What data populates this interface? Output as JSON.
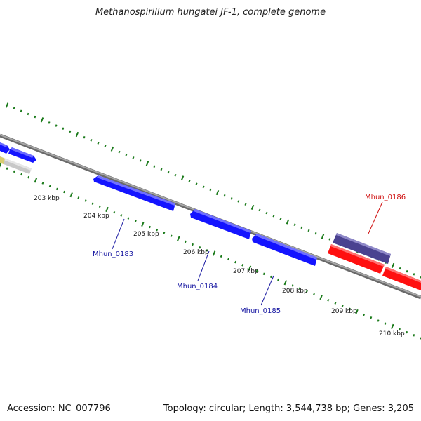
{
  "title": "Methanospirillum hungatei JF-1, complete genome",
  "footer": {
    "accession": "Accession: NC_007796",
    "stats": "Topology: circular; Length: 3,544,738 bp; Genes: 3,205"
  },
  "colors": {
    "forward_gene": "#1414ff",
    "reverse_gene_red": "#ff1010",
    "highlight_gene": "#4a4290",
    "gray_gene": "#c8c8c8",
    "yellow_gene": "#d8cc70",
    "backbone": "#8a8a8a",
    "ticks": "#1a7a1a",
    "blue_label": "#1414a0",
    "red_label": "#d01010"
  },
  "scale": {
    "ticks": [
      {
        "label": "203 kbp"
      },
      {
        "label": "204 kbp"
      },
      {
        "label": "205 kbp"
      },
      {
        "label": "206 kbp"
      },
      {
        "label": "207 kbp"
      },
      {
        "label": "208 kbp"
      },
      {
        "label": "209 kbp"
      },
      {
        "label": "210 kbp"
      }
    ]
  },
  "genes": [
    {
      "name": "Mhun_0183",
      "color": "blue_label"
    },
    {
      "name": "Mhun_0184",
      "color": "blue_label"
    },
    {
      "name": "Mhun_0185",
      "color": "blue_label"
    },
    {
      "name": "Mhun_0186",
      "color": "red_label"
    }
  ]
}
